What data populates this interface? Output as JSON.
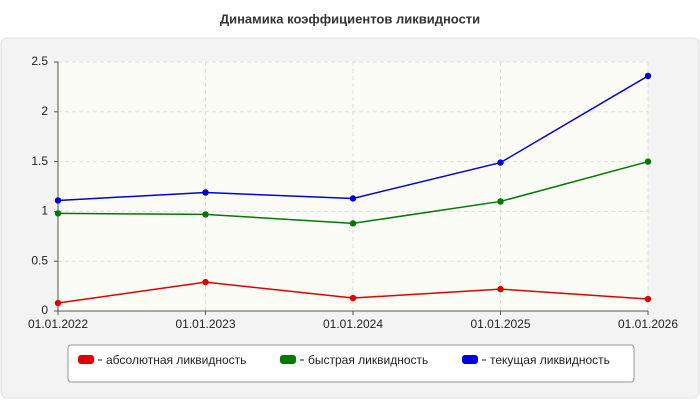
{
  "chart_data": {
    "type": "line",
    "title": "Динамика коэффициентов ликвидности",
    "categories": [
      "01.01.2022",
      "01.01.2023",
      "01.01.2024",
      "01.01.2025",
      "01.01.2026"
    ],
    "series": [
      {
        "name": "абсолютная ликвидность",
        "color": "#e00000",
        "values": [
          0.08,
          0.29,
          0.13,
          0.22,
          0.12
        ]
      },
      {
        "name": "быстрая ликвидность",
        "color": "#007a00",
        "values": [
          0.98,
          0.97,
          0.88,
          1.1,
          1.5
        ]
      },
      {
        "name": "текущая ликвидность",
        "color": "#0000e0",
        "values": [
          1.11,
          1.19,
          1.13,
          1.49,
          2.36
        ]
      }
    ],
    "ylim": [
      0,
      2.5
    ],
    "yticks": [
      0,
      0.5,
      1,
      1.5,
      2,
      2.5
    ],
    "grid": true,
    "legend": "bottom"
  }
}
